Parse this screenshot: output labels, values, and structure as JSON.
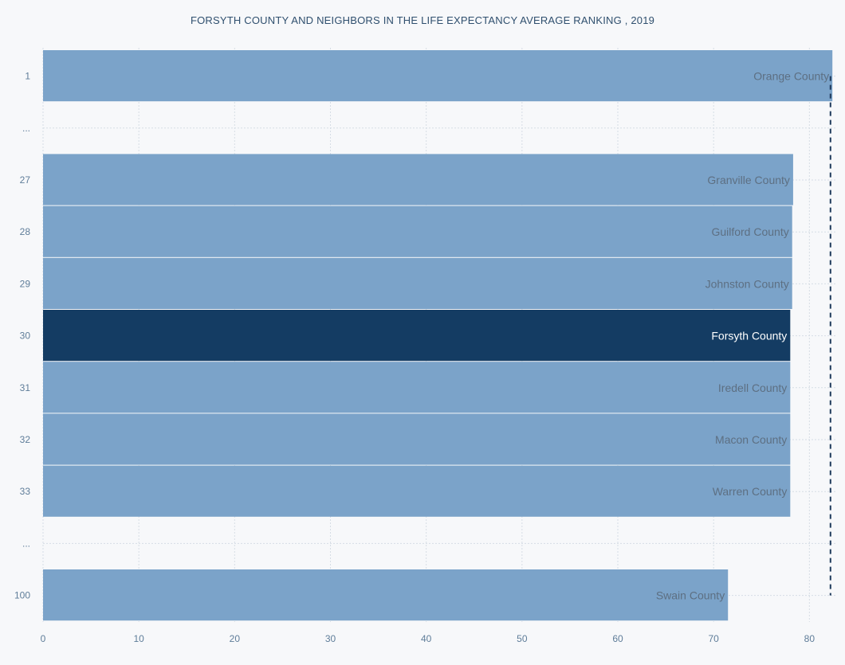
{
  "chart_data": {
    "type": "bar",
    "orientation": "horizontal",
    "title": "FORSYTH COUNTY AND NEIGHBORS IN THE LIFE EXPECTANCY AVERAGE RANKING , 2019",
    "xlabel": "",
    "ylabel": "",
    "xlim": [
      0,
      82.8
    ],
    "x_ticks": [
      "0",
      "10",
      "20",
      "30",
      "40",
      "50",
      "60",
      "70",
      "80"
    ],
    "grid": true,
    "rows": [
      {
        "rank": "1",
        "county": "Orange County",
        "value": 82.4,
        "highlight": false
      },
      {
        "rank": "...",
        "county": "",
        "value": null,
        "highlight": false
      },
      {
        "rank": "27",
        "county": "Granville County",
        "value": 78.3,
        "highlight": false
      },
      {
        "rank": "28",
        "county": "Guilford County",
        "value": 78.2,
        "highlight": false
      },
      {
        "rank": "29",
        "county": "Johnston County",
        "value": 78.2,
        "highlight": false
      },
      {
        "rank": "30",
        "county": "Forsyth County",
        "value": 78.0,
        "highlight": true
      },
      {
        "rank": "31",
        "county": "Iredell County",
        "value": 78.0,
        "highlight": false
      },
      {
        "rank": "32",
        "county": "Macon County",
        "value": 78.0,
        "highlight": false
      },
      {
        "rank": "33",
        "county": "Warren County",
        "value": 78.0,
        "highlight": false
      },
      {
        "rank": "...",
        "county": "",
        "value": null,
        "highlight": false
      },
      {
        "rank": "100",
        "county": "Swain County",
        "value": 71.5,
        "highlight": false
      }
    ],
    "reference_line": {
      "value": 82.2,
      "style": "dashed"
    }
  },
  "colors": {
    "bar": "#7ba3c9",
    "highlight_bar": "#143c63",
    "label": "#5d6f82",
    "highlight_label": "#ffffff",
    "axis_text": "#5f7d99",
    "title": "#2f4f6e",
    "grid": "#d6dde5",
    "reference_line": "#1e3a5c"
  }
}
